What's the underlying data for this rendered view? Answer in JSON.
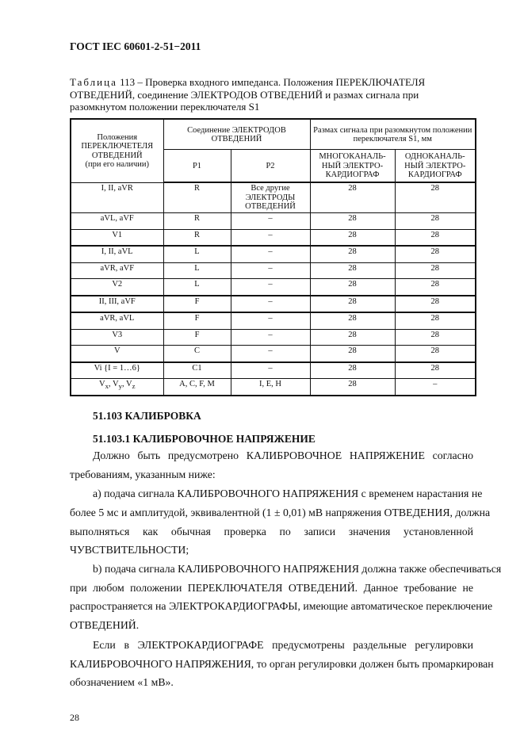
{
  "header": "ГОСТ IEC 60601-2-51−2011",
  "caption": {
    "prefix": "Таблица",
    "lines": [
      "113 – Проверка входного импеданса. Положения ПЕРЕКЛЮЧАТЕЛЯ",
      "ОТВЕДЕНИЙ, соединение ЭЛЕКТРОДОВ ОТВЕДЕНИЙ и размах сигнала при",
      "разомкнутом положении переключателя S1"
    ]
  },
  "table": {
    "h_positions": "Положения ПЕРЕКЛЮЧЕТЕЛЯ ОТВЕДЕНИЙ",
    "h_positions_note": "(при его наличии)",
    "h_connection": "Соединение ЭЛЕКТРОДОВ ОТВЕДЕНИЙ",
    "h_amplitude": "Размах сигнала при разомкнутом положении переключателя S1, мм",
    "h_p1": "P1",
    "h_p2": "P2",
    "h_multi": "МНОГОКАНАЛЬ-НЫЙ ЭЛЕКТРО-КАРДИОГРАФ",
    "h_single": "ОДНОКАНАЛЬ-НЫЙ ЭЛЕКТРО-КАРДИОГРАФ",
    "rows": [
      [
        "I, II, aVR",
        "R",
        "Все другие ЭЛЕКТРОДЫ ОТВЕДЕНИЙ",
        "28",
        "28"
      ],
      [
        "aVL, aVF",
        "R",
        "–",
        "28",
        "28"
      ],
      [
        "V1",
        "R",
        "–",
        "28",
        "28"
      ],
      [
        "I, II, aVL",
        "L",
        "–",
        "28",
        "28"
      ],
      [
        "aVR, aVF",
        "L",
        "–",
        "28",
        "28"
      ],
      [
        "V2",
        "L",
        "–",
        "28",
        "28"
      ],
      [
        "II, III, aVF",
        "F",
        "–",
        "28",
        "28"
      ],
      [
        "aVR, aVL",
        "F",
        "–",
        "28",
        "28"
      ],
      [
        "V3",
        "F",
        "–",
        "28",
        "28"
      ],
      [
        "V",
        "C",
        "–",
        "28",
        "28"
      ],
      [
        "Vi {I = 1…6}",
        "C1",
        "–",
        "28",
        "28"
      ],
      [
        "Vx, Vy, Vz",
        "A, C, F, M",
        "I, E, H",
        "28",
        "–"
      ]
    ]
  },
  "section1": "51.103 КАЛИБРОВКА",
  "section2": "51.103.1 КАЛИБРОВОЧНОЕ НАПРЯЖЕНИЕ",
  "lines": [
    "Должно быть предусмотрено КАЛИБРОВОЧНОЕ НАПРЯЖЕНИЕ согласно",
    "требованиям, указанным ниже:",
    "а) подача сигнала КАЛИБРОВОЧНОГО НАПРЯЖЕНИЯ с временем нарастания не",
    "более 5 мс и амплитудой, эквивалентной (1 ± 0,01) мВ напряжения ОТВЕДЕНИЯ, должна",
    "выполняться как обычная проверка по записи значения установленной",
    "ЧУВСТВИТЕЛЬНОСТИ;",
    "b) подача сигнала КАЛИБРОВОЧНОГО НАПРЯЖЕНИЯ должна также обеспечиваться",
    "при любом положении ПЕРЕКЛЮЧАТЕЛЯ ОТВЕДЕНИЙ. Данное требование не",
    "распространяется на ЭЛЕКТРОКАРДИОГРАФЫ, имеющие автоматическое переключение",
    "ОТВЕДЕНИЙ.",
    "Если в ЭЛЕКТРОКАРДИОГРАФЕ предусмотрены раздельные регулировки",
    "КАЛИБРОВОЧНОГО НАПРЯЖЕНИЯ, то орган регулировки должен быть промаркирован",
    "обозначением «1 мВ»."
  ],
  "page_number": "28"
}
